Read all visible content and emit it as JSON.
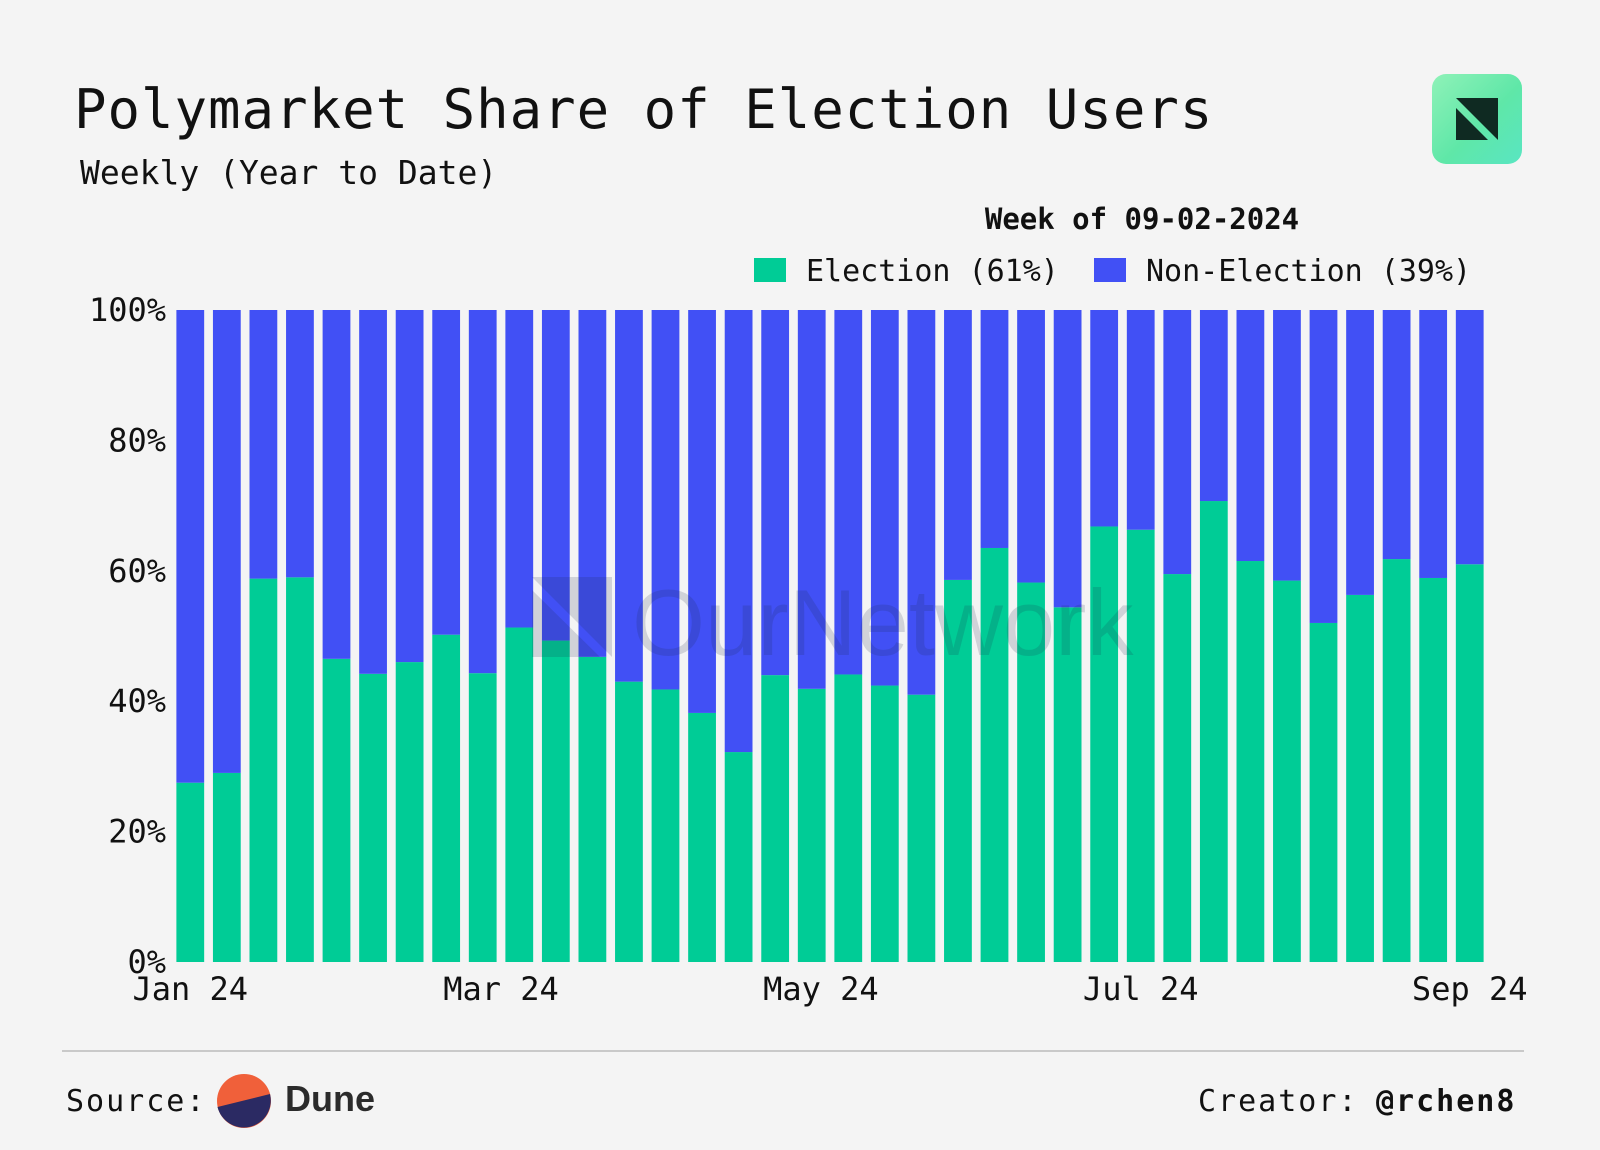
{
  "title": "Polymarket Share of Election Users",
  "subtitle": "Weekly (Year to Date)",
  "footer": {
    "source_label": "Source:",
    "source_name": "Dune",
    "creator_label": "Creator:",
    "creator_handle": "@rchen8"
  },
  "colors": {
    "election": "#00cc96",
    "non_election": "#4150f5",
    "logo_green": "#6ff0b0",
    "dune_orange": "#f0603a",
    "dune_navy": "#2b2a63"
  },
  "icons": {
    "logo": "ournetwork-logo-icon",
    "source": "dune-logo-icon"
  },
  "chart_data": {
    "type": "bar",
    "stacked": true,
    "title": "Polymarket Share of Election Users",
    "hover_header": "Week of 09-02-2024",
    "watermark": "OurNetwork",
    "legend": {
      "position": "top-right",
      "entries": [
        "Election (61%)",
        "Non-Election (39%)"
      ]
    },
    "x_ticks": [
      "Jan 24",
      "Mar 24",
      "May 24",
      "Jul 24",
      "Sep 24"
    ],
    "x_tick_positions": [
      0,
      8.5,
      17.25,
      26,
      35
    ],
    "y_ticks": [
      "0%",
      "20%",
      "40%",
      "60%",
      "80%",
      "100%"
    ],
    "y_tick_values": [
      0,
      20,
      40,
      60,
      80,
      100
    ],
    "ylim": [
      0,
      100
    ],
    "series": [
      {
        "name": "Election",
        "values": [
          27.5,
          29,
          58.8,
          59,
          46.5,
          44.2,
          46,
          50.2,
          44.3,
          51.3,
          49.3,
          46.8,
          43,
          41.8,
          38.2,
          32.2,
          44,
          41.9,
          44.1,
          42.4,
          41,
          58.6,
          63.5,
          58.2,
          54.4,
          66.8,
          66.3,
          59.5,
          70.7,
          61.5,
          58.5,
          52,
          56.3,
          61.8,
          58.9,
          61
        ]
      },
      {
        "name": "Non-Election",
        "values": [
          72.5,
          71,
          41.2,
          41,
          53.5,
          55.8,
          54,
          49.8,
          55.7,
          48.7,
          50.7,
          53.2,
          57,
          58.2,
          61.8,
          67.8,
          56,
          58.1,
          55.9,
          57.6,
          59,
          41.4,
          36.5,
          41.8,
          45.6,
          33.2,
          33.7,
          40.5,
          29.3,
          38.5,
          41.5,
          48,
          43.7,
          38.2,
          41.1,
          39
        ]
      }
    ]
  }
}
